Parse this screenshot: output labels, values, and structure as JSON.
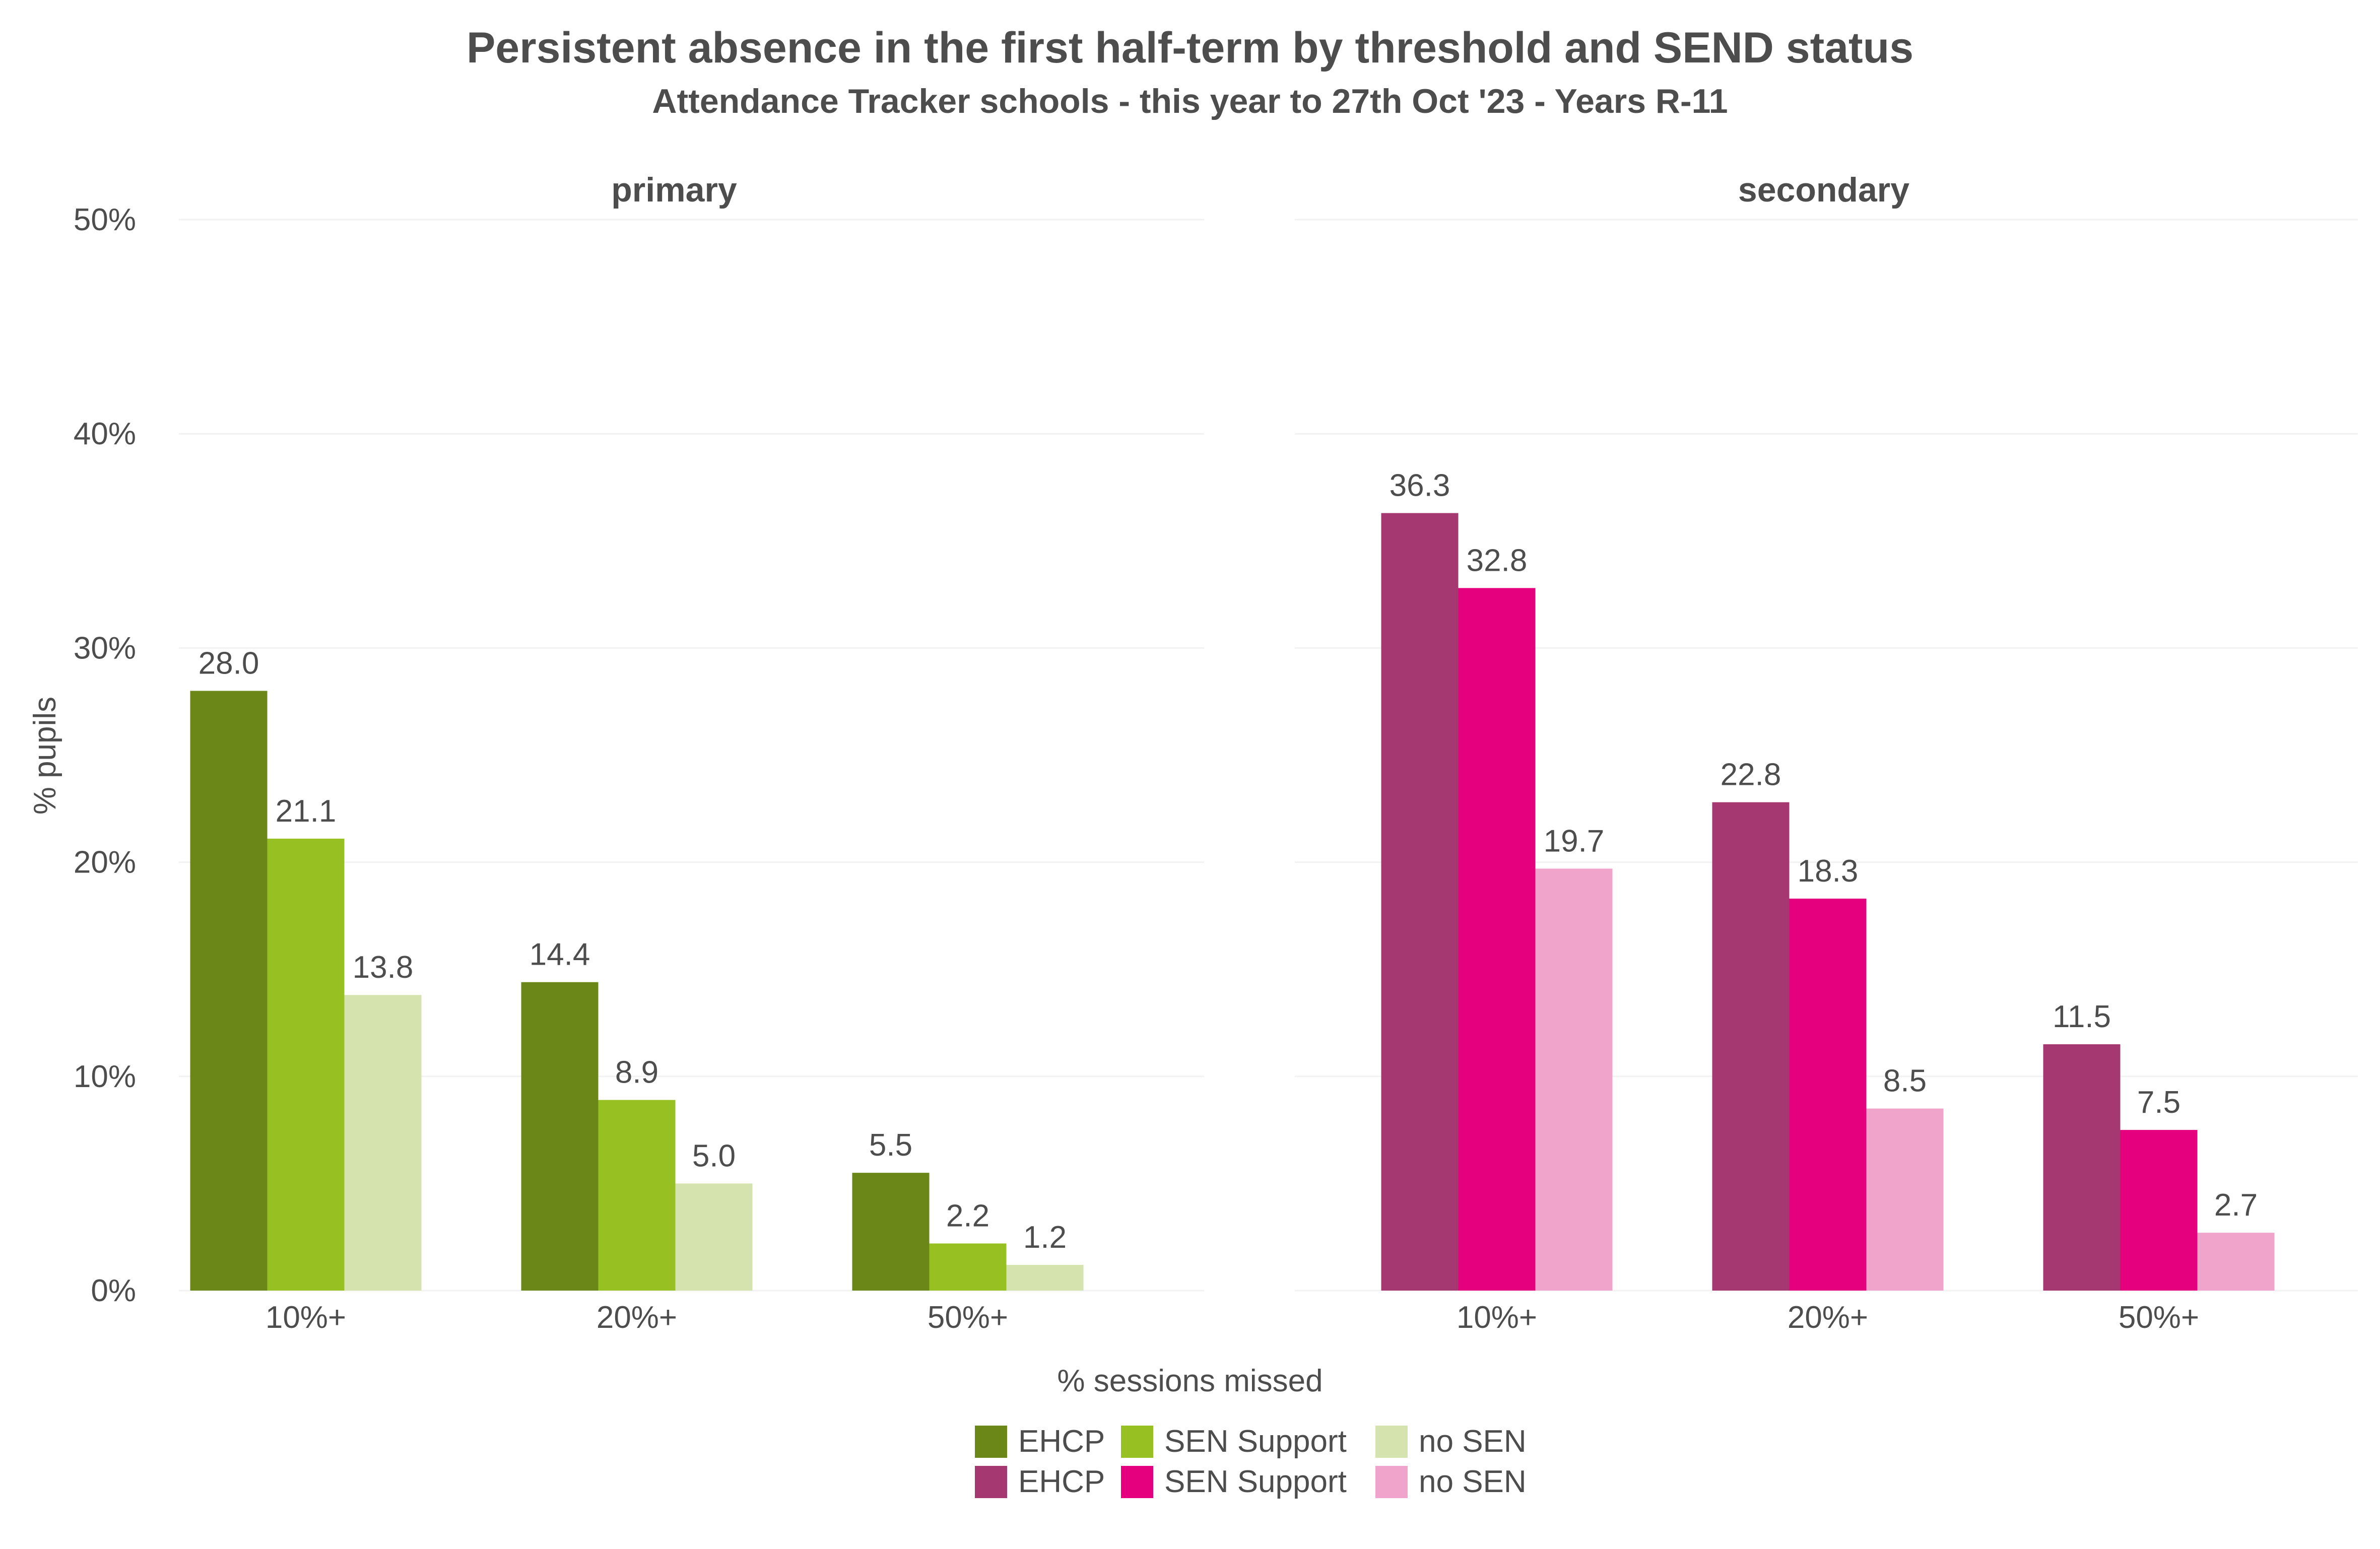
{
  "chart_data": {
    "type": "bar",
    "title": "Persistent absence in the first half-term by threshold and SEND status",
    "subtitle": "Attendance Tracker schools - this year to 27th Oct '23 - Years R-11",
    "xlabel": "% sessions missed",
    "ylabel": "% pupils",
    "ylim": [
      0,
      50
    ],
    "y_ticks": [
      "0%",
      "10%",
      "20%",
      "30%",
      "40%",
      "50%"
    ],
    "y_tick_values": [
      0,
      10,
      20,
      30,
      40,
      50
    ],
    "categories": [
      "10%+",
      "20%+",
      "50%+"
    ],
    "grid": true,
    "legend_position": "bottom",
    "facets": [
      {
        "label": "primary",
        "series": [
          {
            "name": "EHCP",
            "color": "#6a8718",
            "values": [
              28.0,
              14.4,
              5.5
            ],
            "labels": [
              "28.0",
              "14.4",
              "5.5"
            ]
          },
          {
            "name": "SEN Support",
            "color": "#97c122",
            "values": [
              21.1,
              8.9,
              2.2
            ],
            "labels": [
              "21.1",
              "8.9",
              "2.2"
            ]
          },
          {
            "name": "no SEN",
            "color": "#d5e3ae",
            "values": [
              13.8,
              5.0,
              1.2
            ],
            "labels": [
              "13.8",
              "5.0",
              "1.2"
            ]
          }
        ]
      },
      {
        "label": "secondary",
        "series": [
          {
            "name": "EHCP",
            "color": "#a63871",
            "values": [
              36.3,
              22.8,
              11.5
            ],
            "labels": [
              "36.3",
              "22.8",
              "11.5"
            ]
          },
          {
            "name": "SEN Support",
            "color": "#e5007e",
            "values": [
              32.8,
              18.3,
              7.5
            ],
            "labels": [
              "32.8",
              "18.3",
              "7.5"
            ]
          },
          {
            "name": "no SEN",
            "color": "#f0a3cb",
            "values": [
              19.7,
              8.5,
              2.7
            ],
            "labels": [
              "19.7",
              "8.5",
              "2.7"
            ]
          }
        ]
      }
    ]
  }
}
